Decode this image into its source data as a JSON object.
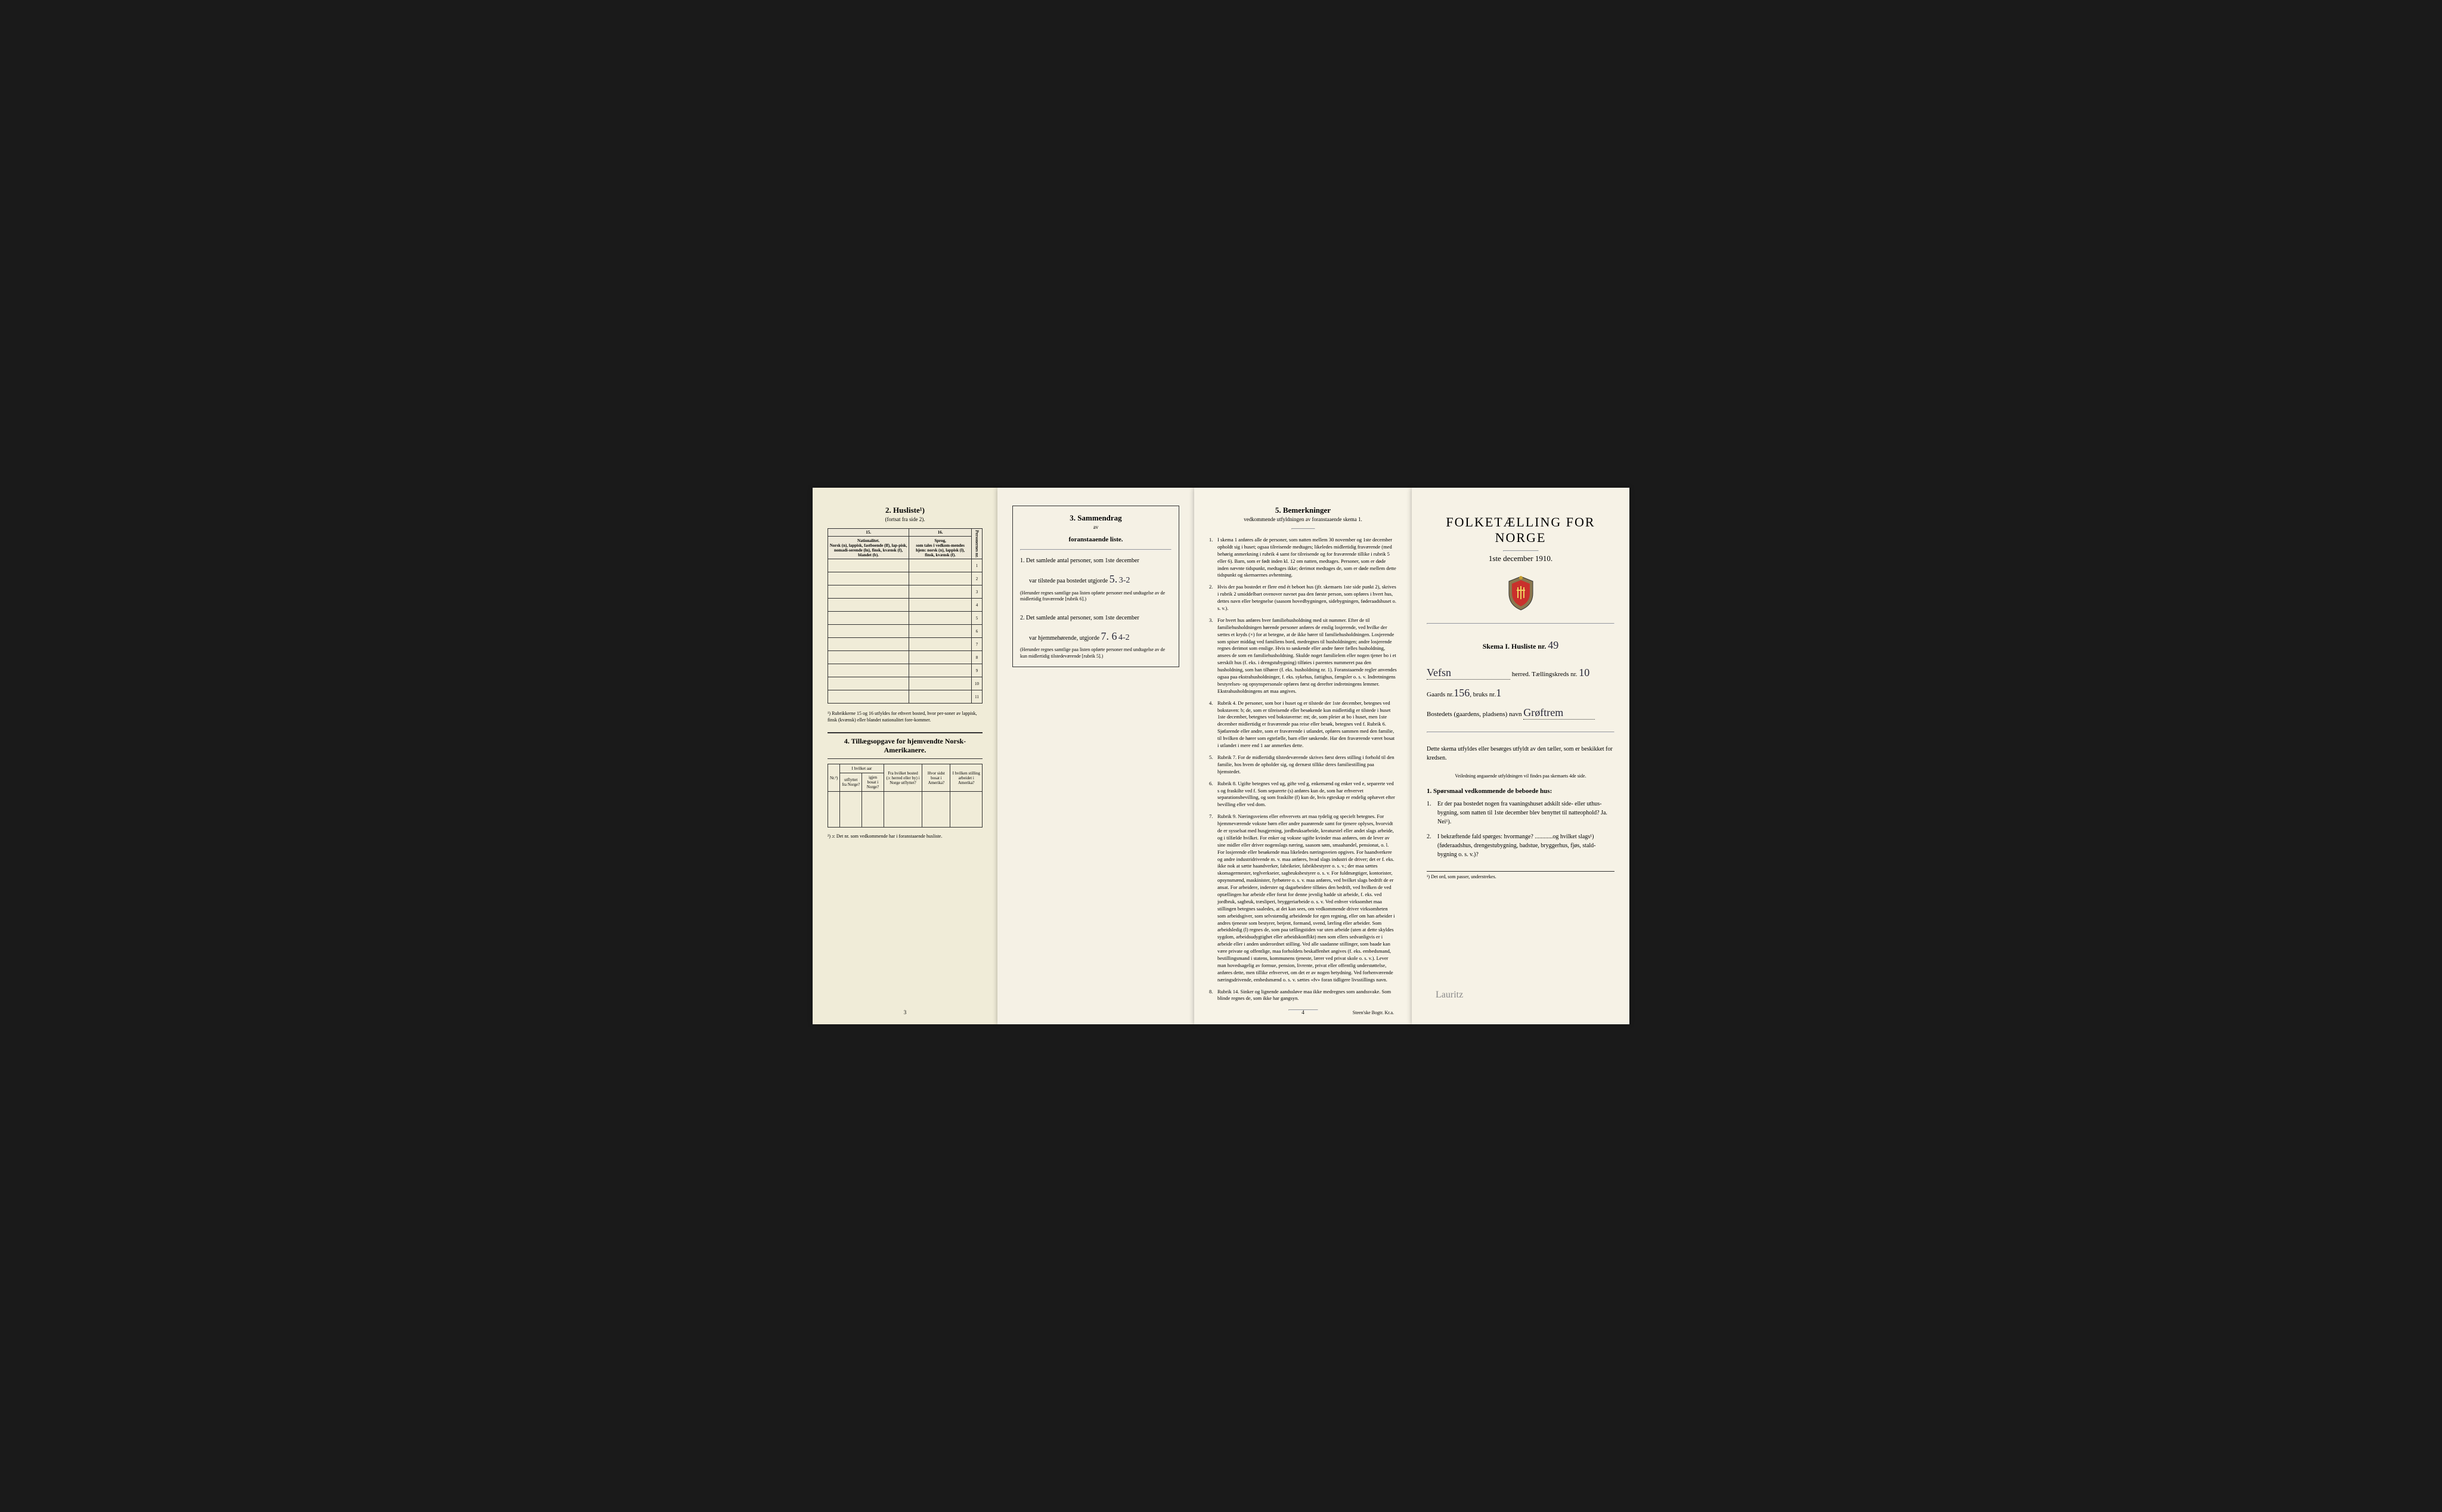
{
  "page1": {
    "title": "2. Husliste¹)",
    "subtitle": "(fortsat fra side 2).",
    "col15": "15.",
    "col16": "16.",
    "header_nat": "Nationalitet.",
    "header_nat_detail": "Norsk (n), lappisk, fastboende (lf), lap-pisk, nomadi-serende (ln), finsk, kvænsk (f), blandet (b).",
    "header_sprog": "Sprog,",
    "header_sprog_detail": "som tales i vedkom-mendes hjem: norsk (n), lappisk (l), finsk, kvænsk (f).",
    "header_pers": "Personernes nr.",
    "rows": [
      "1",
      "2",
      "3",
      "4",
      "5",
      "6",
      "7",
      "8",
      "9",
      "10",
      "11"
    ],
    "footnote": "¹) Rubrikkerne 15 og 16 utfyldes for ethvert bosted, hvor per-soner av lappisk, finsk (kvænsk) eller blandet nationalitet fore-kommer.",
    "tillegg_title": "4. Tillægsopgave for hjemvendte Norsk-Amerikanere.",
    "t_nr": "Nr.²)",
    "t_c1": "I hvilket aar",
    "t_c1a": "utflyttet fra Norge?",
    "t_c1b": "igjen bosat i Norge?",
    "t_c2": "Fra hvilket bosted (ɔ: herred eller by) i Norge utflyttet?",
    "t_c3": "Hvor sidst bosat i Amerika?",
    "t_c4": "I hvilken stilling arbeidet i Amerika?",
    "t_foot": "²) ɔ: Det nr. som vedkommende har i foranstaaende husliste.",
    "pgnum": "3"
  },
  "page2": {
    "title": "3. Sammendrag",
    "sub1": "av",
    "sub2": "foranstaaende liste.",
    "item1_pre": "1. Det samlede antal personer, som 1ste december",
    "item1_mid": "var tilstede paa bostedet utgjorde",
    "item1_val": "5.",
    "item1_val2": "3-2",
    "item1_fine": "(Herunder regnes samtlige paa listen opførte personer med undtagelse av de midlertidig fraværende [rubrik 6].)",
    "item2_pre": "2. Det samlede antal personer, som 1ste december",
    "item2_mid": "var hjemmehørende, utgjorde",
    "item2_val": "7. 6",
    "item2_val2": "4-2",
    "item2_fine": "(Herunder regnes samtlige paa listen opførte personer med undtagelse av de kun midlertidig tilstedeværende [rubrik 5].)"
  },
  "page3": {
    "title": "5. Bemerkninger",
    "sub": "vedkommende utfyldningen av foranstaaende skema 1.",
    "items": [
      {
        "n": "1.",
        "t": "I skema 1 anføres alle de personer, som natten mellem 30 november og 1ste december opholdt sig i huset; ogsaa tilreisende medtages; likeledes midlertidig fraværende (med behørig anmerkning i rubrik 4 samt for tilreisende og for fraværende tillike i rubrik 5 eller 6). Barn, som er født inden kl. 12 om natten, medtages. Personer, som er døde inden nævnte tidspunkt, medtages ikke; derimot medtages de, som er døde mellem dette tidspunkt og skemaernes avhentning."
      },
      {
        "n": "2.",
        "t": "Hvis der paa bostedet er flere end ét beboet hus (jfr. skemaets 1ste side punkt 2), skrives i rubrik 2 umiddelbart ovenover navnet paa den første person, som opføres i hvert hus, dettes navn eller betegnelse (saasom hovedbygningen, sidebygningen, føderaadshuset o. s. v.)."
      },
      {
        "n": "3.",
        "t": "For hvert hus anføres hver familiehusholdning med sit nummer. Efter de til familiehusholdningen hørende personer anføres de enslig losjerende, ved hvilke der sættes et kryds (×) for at betegne, at de ikke hører til familiehusholdningen. Losjerende som spiser middag ved familiens bord, medregnes til husholdningen; andre losjerende regnes derimot som enslige. Hvis to søskende eller andre fører fælles husholdning, ansees de som en familiehusholdning. Skulde noget familielem eller nogen tjener bo i et særskilt hus (f. eks. i drengstubygning) tilføies i parentes nummeret paa den husholdning, som han tilhører (f. eks. husholdning nr. 1).\nForanstaaende regler anvendes ogsaa paa ekstrahusholdninger, f. eks. sykehus, fattighus, fængsler o. s. v. Indretningens bestyrelses- og opsynspersonale opføres først og derefter indretningens lemmer. Ekstrahusholdningens art maa angives."
      },
      {
        "n": "4.",
        "t": "Rubrik 4. De personer, som bor i huset og er tilstede der 1ste december, betegnes ved bokstaven: b; de, som er tilreisende eller besøkende kun midlertidig er tilstede i huset 1ste december, betegnes ved bokstaverne: mt; de, som pleier at bo i huset, men 1ste december midlertidig er fraværende paa reise eller besøk, betegnes ved f.\nRubrik 6. Sjøfarende eller andre, som er fraværende i utlandet, opføres sammen med den familie, til hvilken de hører som egtefælle, barn eller søskende.\nHar den fraværende været bosat i utlandet i mere end 1 aar anmerkes dette."
      },
      {
        "n": "5.",
        "t": "Rubrik 7. For de midlertidig tilstedeværende skrives først deres stilling i forhold til den familie, hos hvem de opholder sig, og dernæst tillike deres familiestilling paa hjemstedet."
      },
      {
        "n": "6.",
        "t": "Rubrik 8. Ugifte betegnes ved ug, gifte ved g, enkemænd og enker ved e, separerte ved s og fraskilte ved f. Som separerte (s) anføres kun de, som har erhvervet separationsbevilling, og som fraskilte (f) kun de, hvis egteskap er endelig ophævet efter bevilling eller ved dom."
      },
      {
        "n": "7.",
        "t": "Rubrik 9. Næringsveiens eller erhvervets art maa tydelig og specielt betegnes.\nFor hjemmeværende voksne børn eller andre paarørende samt for tjenere oplyses, hvorvidt de er sysselsat med husgjerning, jordbruksarbeide, kreaturstel eller andet slags arbeide, og i tilfælde hvilket. For enker og voksne ugifte kvinder maa anføres, om de lever av sine midler eller driver nogenslags næring, saasom søm, smaahandel, pensionat, o. l.\nFor losjerende eller besøkende maa likeledes næringsveien opgives.\nFor haandverkere og andre industridrivende m. v. maa anføres, hvad slags industri de driver; det er f. eks. ikke nok at sætte haandverker, fabrikeier, fabrikbestyrer o. s. v.; der maa sættes skomagermester, teglverkseier, sagbruksbestyrer o. s. v.\nFor fuldmægtiger, kontorister, opsynsmænd, maskinister, fyrbøtere o. s. v. maa anføres, ved hvilket slags bedrift de er ansat.\nFor arbeidere, inderster og dagarbeidere tilføies den bedrift, ved hvilken de ved optællingen har arbeide eller forut for denne jevnlig hadde sit arbeide, f. eks. ved jordbruk, sagbruk, træsliperi, bryggeriarbeide o. s. v.\nVed enhver virksomhet maa stillingen betegnes saaledes, at det kan sees, om vedkommende driver virksomheten som arbeidsgiver, som selvstændig arbeidende for egen regning, eller om han arbeider i andres tjeneste som bestyrer, betjent, formand, svend, lærling eller arbeider.\nSom arbeidsledig (l) regnes de, som paa tællingstiden var uten arbeide (uten at dette skyldes sygdom, arbeidsudygtighet eller arbeidskonflikt) men som ellers sedvanligvis er i arbeide eller i anden underordnet stilling.\nVed alle saadanne stillinger, som baade kan være private og offentlige, maa forholdets beskaffenhet angives (f. eks. embedsmand, bestillingsmand i statens, kommunens tjeneste, lærer ved privat skole o. s. v.).\nLever man hovedsagelig av formue, pension, livrente, privat eller offentlig understøttelse, anføres dette, men tillike erhvervet, om det er av nogen betydning.\nVed forhenværende næringsdrivende, embedsmænd o. s. v. sættes «fv» foran tidligere livsstillings navn."
      },
      {
        "n": "8.",
        "t": "Rubrik 14. Sinker og lignende aandssløve maa ikke medregnes som aandssvake.\nSom blinde regnes de, som ikke har gangsyn."
      }
    ],
    "pgnum": "4",
    "imprint": "Steen'ske Bogtr. Kr.a."
  },
  "page4": {
    "title": "FOLKETÆLLING FOR NORGE",
    "date": "1ste december 1910.",
    "skema": "Skema I.  Husliste nr.",
    "skema_val": "49",
    "herred_label": "herred.  Tællingskreds nr.",
    "herred_val": "Vefsn",
    "kreds_val": "10",
    "gaards_label": "Gaards nr.",
    "gaards_val": "156",
    "bruks_label": "bruks nr.",
    "bruks_val": "1",
    "bosted_label": "Bostedets (gaardens, pladsens) navn",
    "bosted_val": "Grøftrem",
    "body": "Dette skema utfyldes eller besørges utfyldt av den tæller, som er beskikket for kredsen.",
    "veil": "Veiledning angaaende utfyldningen vil findes paa skemaets 4de side.",
    "q_head": "1. Spørsmaal vedkommende de beboede hus:",
    "q1": "Er der paa bostedet nogen fra vaaningshuset adskilt side- eller uthus-bygning, som natten til 1ste december blev benyttet til natteophold?  Ja.  Nei¹).",
    "q2": "I bekræftende fald spørges: hvormange? ............og hvilket slags¹) (føderaadshus, drengestubygning, badstue, bryggerhus, fjøs, stald-bygning o. s. v.)?",
    "foot": "¹) Det ord, som passer, understrekes.",
    "sig": "Lauritz"
  }
}
